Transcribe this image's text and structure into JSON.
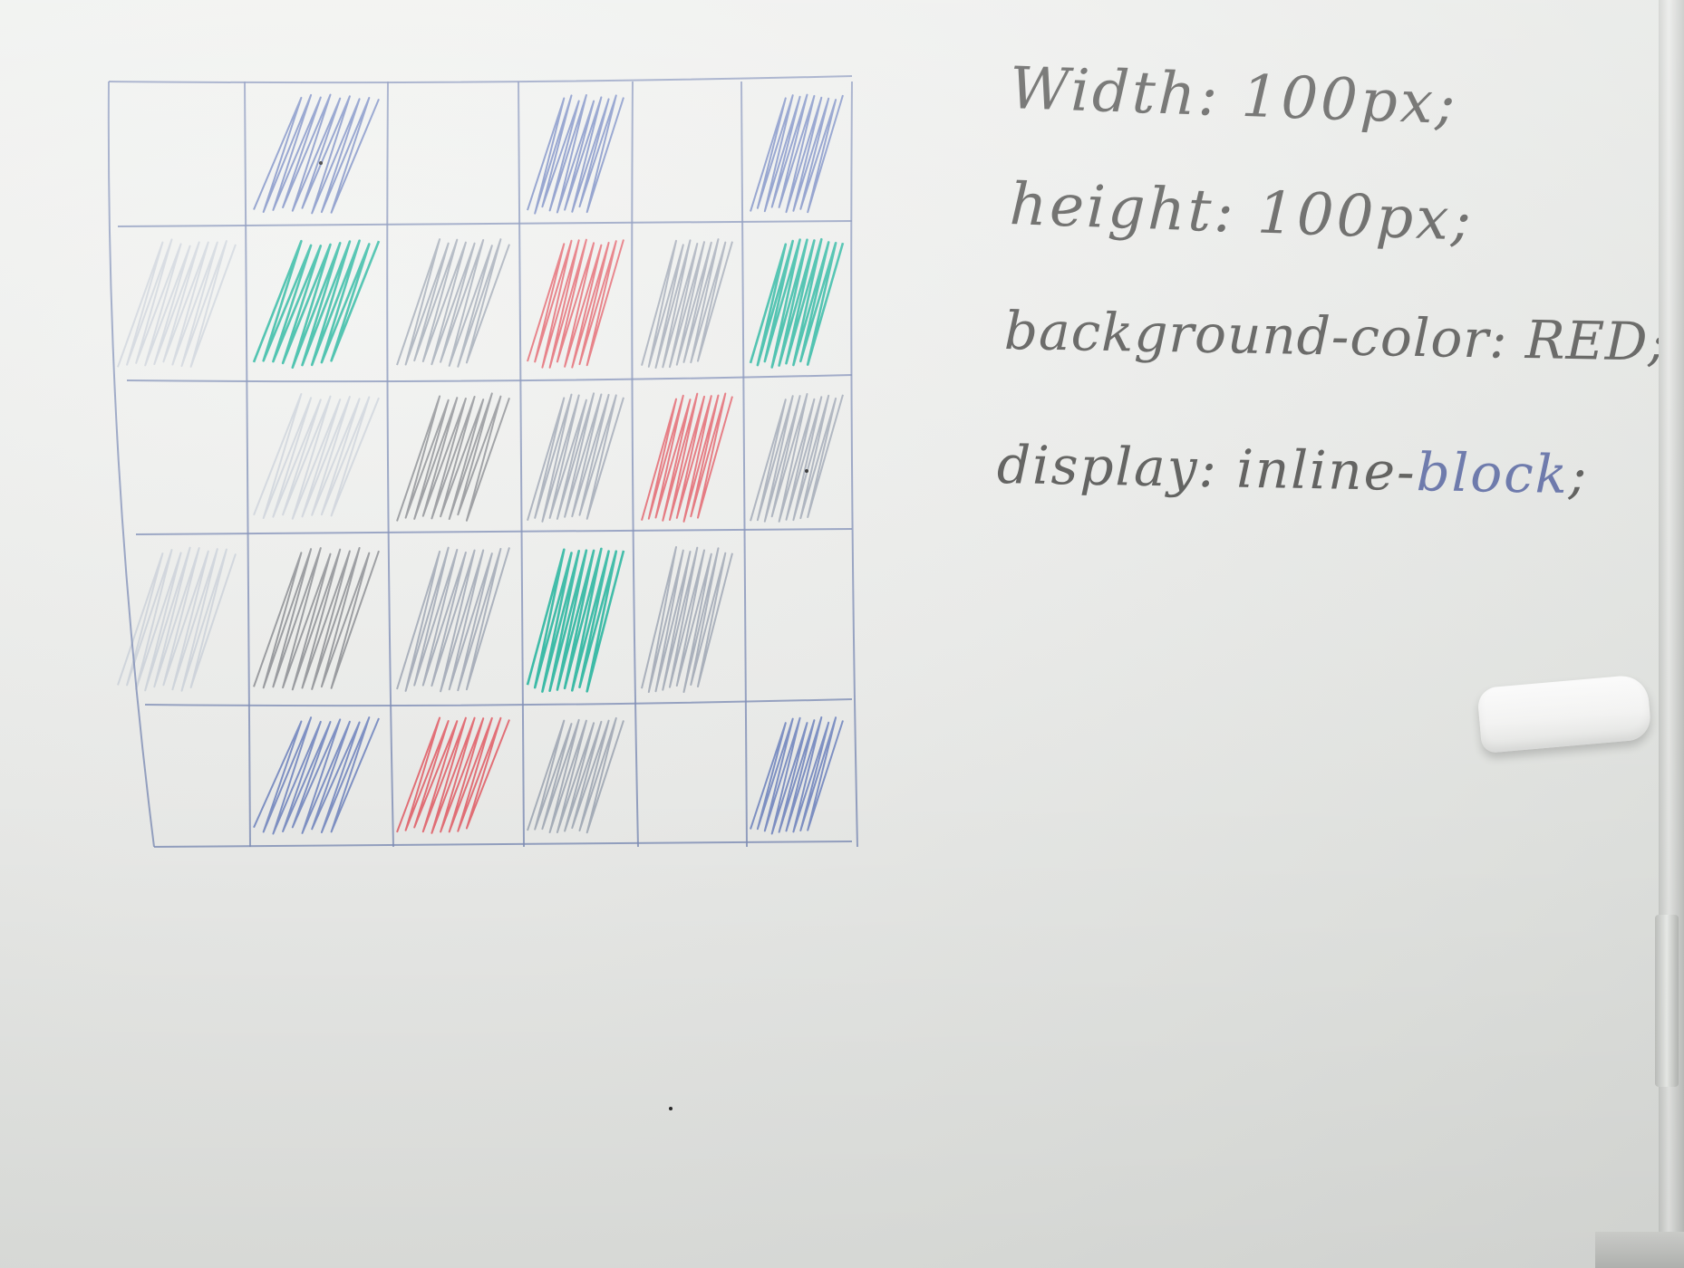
{
  "notes": {
    "line1": "Width: 100px;",
    "line2": "height: 100px;",
    "line3": "background-color: RED;",
    "line4_prefix": "display: inline-",
    "line4_blue": "block",
    "line4_suffix": ";"
  },
  "grid": {
    "rows": 5,
    "cols": 6,
    "cells": [
      [
        "empty",
        "blue",
        "empty",
        "blue",
        "empty",
        "blue"
      ],
      [
        "faint",
        "green",
        "gray",
        "red",
        "gray",
        "green"
      ],
      [
        "empty",
        "faint",
        "dark",
        "gray",
        "red",
        "gray"
      ],
      [
        "faint",
        "dark",
        "gray",
        "green",
        "gray",
        "empty"
      ],
      [
        "empty",
        "blue",
        "red",
        "gray",
        "empty",
        "blue"
      ]
    ]
  },
  "colors": {
    "grid_line": "#7f8fb8",
    "blue": "#6d83bf",
    "green": "#18b39a",
    "red": "#e45a64",
    "gray": "#9ea6b4",
    "dark": "#8b8d92",
    "faint": "#b9c2d2",
    "ink": "#3c3c3a"
  }
}
